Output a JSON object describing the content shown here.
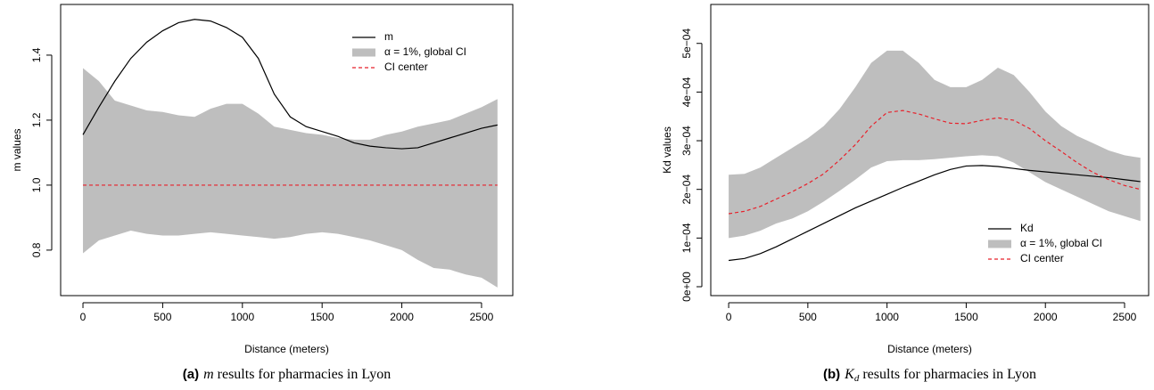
{
  "chart_data": [
    {
      "type": "line",
      "caption": {
        "label": "(a)",
        "symbol": "m",
        "text": "results for pharmacies in Lyon"
      },
      "xlabel": "Distance (meters)",
      "ylabel": "m values",
      "legend": "topright",
      "xlim": [
        -140,
        2696
      ],
      "ylim": [
        0.66,
        1.556
      ],
      "xticks": [
        0,
        500,
        1000,
        1500,
        2000,
        2500
      ],
      "yticks": [
        0.8,
        {
          "value": 1,
          "label": "1.0"
        },
        1.2,
        1.4
      ],
      "x": [
        0,
        100,
        200,
        300,
        400,
        500,
        600,
        700,
        800,
        900,
        1000,
        1100,
        1200,
        1300,
        1400,
        1500,
        1600,
        1700,
        1800,
        1900,
        2000,
        2100,
        2200,
        2300,
        2400,
        2500,
        2600
      ],
      "series": [
        {
          "name": "α = 1%, global CI",
          "color": "#bebebe",
          "upper": [
            1.36,
            1.32,
            1.26,
            1.245,
            1.23,
            1.225,
            1.215,
            1.21,
            1.235,
            1.25,
            1.25,
            1.22,
            1.18,
            1.17,
            1.16,
            1.155,
            1.145,
            1.14,
            1.14,
            1.155,
            1.165,
            1.18,
            1.19,
            1.2,
            1.22,
            1.24,
            1.265
          ],
          "lower": [
            0.79,
            0.83,
            0.845,
            0.86,
            0.85,
            0.845,
            0.845,
            0.85,
            0.855,
            0.85,
            0.845,
            0.84,
            0.835,
            0.84,
            0.85,
            0.855,
            0.85,
            0.84,
            0.83,
            0.815,
            0.8,
            0.77,
            0.745,
            0.74,
            0.725,
            0.715,
            0.685
          ]
        },
        {
          "name": "m",
          "color": "#000000",
          "values": [
            1.155,
            1.24,
            1.32,
            1.39,
            1.44,
            1.475,
            1.5,
            1.51,
            1.505,
            1.485,
            1.455,
            1.39,
            1.28,
            1.21,
            1.18,
            1.165,
            1.15,
            1.13,
            1.12,
            1.115,
            1.112,
            1.115,
            1.13,
            1.145,
            1.16,
            1.175,
            1.185
          ]
        },
        {
          "name": "CI center",
          "color": "#e8202a",
          "dashed": true,
          "values": [
            1,
            1,
            1,
            1,
            1,
            1,
            1,
            1,
            1,
            1,
            1,
            1,
            1,
            1,
            1,
            1,
            1,
            1,
            1,
            1,
            1,
            1,
            1,
            1,
            1,
            1,
            1
          ]
        }
      ]
    },
    {
      "type": "line",
      "caption": {
        "label": "(b)",
        "symbol": "K",
        "subscript": "d",
        "text": "results for pharmacies in Lyon"
      },
      "xlabel": "Distance (meters)",
      "ylabel": "Kd values",
      "legend": "bottomright",
      "xlim": [
        -113,
        2652
      ],
      "ylim": [
        -1.83e-05,
        0.00058
      ],
      "xticks": [
        0,
        500,
        1000,
        1500,
        2000,
        2500
      ],
      "yticks": [
        {
          "value": 0,
          "label": "0e+00"
        },
        {
          "value": 0.0001,
          "label": "1e−04"
        },
        {
          "value": 0.0002,
          "label": "2e−04"
        },
        {
          "value": 0.0003,
          "label": "3e−04"
        },
        {
          "value": 0.0004,
          "label": "4e−04"
        },
        {
          "value": 0.0005,
          "label": "5e−04"
        }
      ],
      "x": [
        0,
        100,
        200,
        300,
        400,
        500,
        600,
        700,
        800,
        900,
        1000,
        1100,
        1200,
        1300,
        1400,
        1500,
        1600,
        1700,
        1800,
        1900,
        2000,
        2100,
        2200,
        2300,
        2400,
        2500,
        2600
      ],
      "series": [
        {
          "name": "α = 1%, global CI",
          "color": "#bebebe",
          "upper": [
            0.00023,
            0.000232,
            0.000245,
            0.000265,
            0.000285,
            0.000305,
            0.00033,
            0.000365,
            0.00041,
            0.00046,
            0.000485,
            0.000485,
            0.00046,
            0.000425,
            0.00041,
            0.00041,
            0.000425,
            0.00045,
            0.000435,
            0.0004,
            0.00036,
            0.00033,
            0.00031,
            0.000295,
            0.00028,
            0.00027,
            0.000265
          ],
          "lower": [
            0.0001,
            0.000105,
            0.000115,
            0.00013,
            0.00014,
            0.000155,
            0.000175,
            0.000197,
            0.00022,
            0.000245,
            0.000258,
            0.00026,
            0.00026,
            0.000262,
            0.000265,
            0.000268,
            0.00027,
            0.000268,
            0.000255,
            0.000235,
            0.000215,
            0.0002,
            0.000185,
            0.00017,
            0.000155,
            0.000145,
            0.000135
          ]
        },
        {
          "name": "Kd",
          "color": "#000000",
          "values": [
            5.4e-05,
            5.8e-05,
            6.8e-05,
            8.2e-05,
            9.8e-05,
            0.000114,
            0.00013,
            0.000146,
            0.000162,
            0.000176,
            0.00019,
            0.000204,
            0.000217,
            0.00023,
            0.000241,
            0.000248,
            0.000249,
            0.000247,
            0.000243,
            0.000239,
            0.000236,
            0.000233,
            0.00023,
            0.000227,
            0.000224,
            0.00022,
            0.000216
          ]
        },
        {
          "name": "CI center",
          "color": "#e8202a",
          "dashed": true,
          "values": [
            0.00015,
            0.000155,
            0.000165,
            0.00018,
            0.000195,
            0.000212,
            0.000232,
            0.00026,
            0.000292,
            0.00033,
            0.000358,
            0.000362,
            0.000355,
            0.000345,
            0.000336,
            0.000335,
            0.000342,
            0.000347,
            0.000342,
            0.000325,
            0.0003,
            0.000278,
            0.000255,
            0.000235,
            0.00022,
            0.000208,
            0.0002
          ]
        }
      ]
    }
  ]
}
